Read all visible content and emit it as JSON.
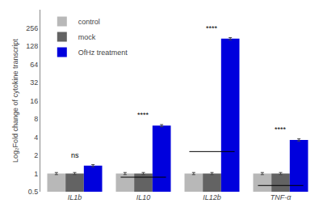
{
  "chart_data": {
    "type": "bar",
    "categories": [
      "IL1b",
      "IL10",
      "IL12b",
      "TNF-α"
    ],
    "series": [
      {
        "name": "control",
        "color": "#b8b8b8",
        "values": [
          1.0,
          1.0,
          1.0,
          1.0
        ],
        "errors": [
          0.04,
          0.04,
          0.04,
          0.04
        ]
      },
      {
        "name": "mock",
        "color": "#636363",
        "values": [
          1.0,
          1.0,
          1.0,
          1.0
        ],
        "errors": [
          0.04,
          0.04,
          0.04,
          0.04
        ]
      },
      {
        "name": "OfHz treatment",
        "color": "#0000dd",
        "values": [
          1.35,
          6.2,
          170.0,
          3.6
        ],
        "errors": [
          0.054,
          0.248,
          6.8,
          0.144
        ]
      }
    ],
    "ylabel": "Log₂Fold change of cytokine transcript",
    "log": "y",
    "ylim": [
      0.5,
      512
    ],
    "yticks": [
      0.5,
      1,
      2,
      4,
      8,
      16,
      32,
      64,
      128,
      256
    ],
    "annotations": [
      "ns",
      "****",
      "****",
      "****"
    ],
    "grid": false,
    "legend": "upper left"
  }
}
